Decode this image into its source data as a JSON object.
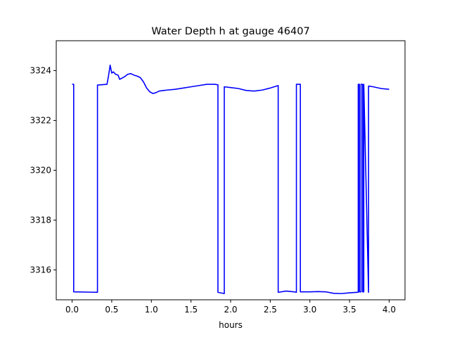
{
  "chart_data": {
    "type": "line",
    "title": "Water Depth h at gauge 46407",
    "xlabel": "hours",
    "ylabel": "",
    "xlim": [
      -0.2,
      4.2
    ],
    "ylim": [
      3314.8,
      3325.2
    ],
    "xticks": [
      0.0,
      0.5,
      1.0,
      1.5,
      2.0,
      2.5,
      3.0,
      3.5,
      4.0
    ],
    "xtick_labels": [
      "0.0",
      "0.5",
      "1.0",
      "1.5",
      "2.0",
      "2.5",
      "3.0",
      "3.5",
      "4.0"
    ],
    "yticks": [
      3316,
      3318,
      3320,
      3322,
      3324
    ],
    "ytick_labels": [
      "3316",
      "3318",
      "3320",
      "3322",
      "3324"
    ],
    "grid": false,
    "series": [
      {
        "color": "#0000ff",
        "x": [
          0.0,
          0.02,
          0.02,
          0.32,
          0.32,
          0.44,
          0.46,
          0.48,
          0.5,
          0.52,
          0.55,
          0.58,
          0.6,
          0.63,
          0.66,
          0.7,
          0.74,
          0.78,
          0.82,
          0.86,
          0.9,
          0.94,
          0.98,
          1.02,
          1.06,
          1.1,
          1.15,
          1.2,
          1.3,
          1.4,
          1.5,
          1.6,
          1.7,
          1.8,
          1.84,
          1.84,
          1.92,
          1.92,
          2.0,
          2.1,
          2.2,
          2.3,
          2.4,
          2.5,
          2.6,
          2.6,
          2.7,
          2.8,
          2.83,
          2.83,
          2.88,
          2.88,
          3.0,
          3.1,
          3.2,
          3.3,
          3.4,
          3.5,
          3.6,
          3.61,
          3.61,
          3.625,
          3.625,
          3.645,
          3.645,
          3.665,
          3.665,
          3.68,
          3.68,
          3.74,
          3.74,
          3.8,
          3.9,
          4.0
        ],
        "y": [
          3323.45,
          3323.45,
          3315.12,
          3315.1,
          3323.42,
          3323.45,
          3323.8,
          3324.22,
          3323.9,
          3323.95,
          3323.85,
          3323.82,
          3323.65,
          3323.7,
          3323.75,
          3323.85,
          3323.88,
          3323.82,
          3323.78,
          3323.72,
          3323.55,
          3323.3,
          3323.15,
          3323.08,
          3323.12,
          3323.18,
          3323.2,
          3323.22,
          3323.25,
          3323.3,
          3323.35,
          3323.4,
          3323.45,
          3323.45,
          3323.43,
          3315.1,
          3315.05,
          3323.35,
          3323.32,
          3323.28,
          3323.2,
          3323.18,
          3323.22,
          3323.3,
          3323.4,
          3315.1,
          3315.15,
          3315.12,
          3315.1,
          3323.45,
          3323.45,
          3315.12,
          3315.12,
          3315.13,
          3315.12,
          3315.06,
          3315.05,
          3315.08,
          3315.1,
          3315.1,
          3323.45,
          3323.45,
          3315.12,
          3315.12,
          3323.45,
          3323.45,
          3315.12,
          3315.12,
          3323.45,
          3315.1,
          3323.38,
          3323.35,
          3323.28,
          3323.25
        ]
      }
    ]
  }
}
